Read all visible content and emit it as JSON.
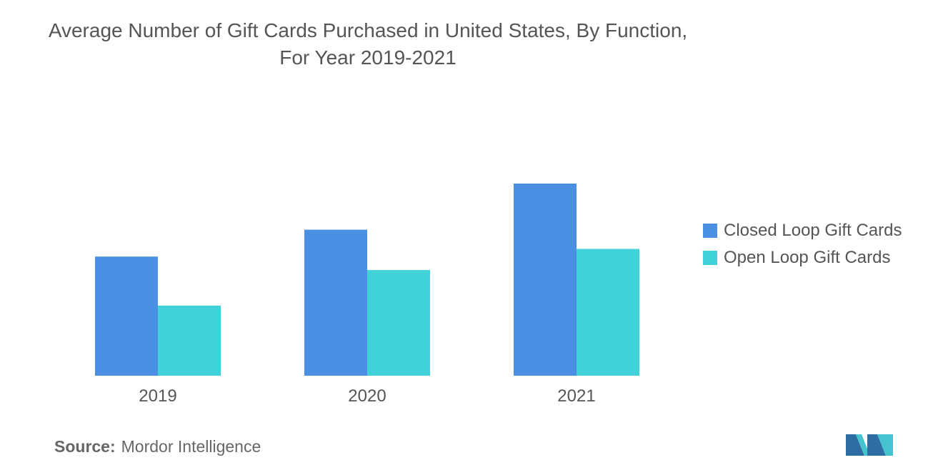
{
  "colors": {
    "closed_loop": "#4A8FE2",
    "open_loop": "#41D1D9",
    "text": "#555555",
    "logo_dark": "#2E6DA4",
    "logo_light": "#45C3CF"
  },
  "footer": {
    "source_key": "Source:",
    "source_value": "Mordor Intelligence",
    "logo_icon": "mordor-intelligence-logo-icon"
  },
  "chart_data": {
    "type": "bar",
    "title": "Average Number of Gift Cards Purchased in United States, By Function, For Year 2019-2021",
    "categories": [
      "2019",
      "2020",
      "2021"
    ],
    "series": [
      {
        "name": "Closed Loop Gift Cards",
        "values": [
          6.2,
          7.6,
          10.0
        ]
      },
      {
        "name": "Open Loop Gift Cards",
        "values": [
          3.65,
          5.5,
          6.6
        ]
      }
    ],
    "xlabel": "",
    "ylabel": "",
    "ylim": [
      0,
      10
    ],
    "grid": false,
    "legend_position": "right"
  }
}
